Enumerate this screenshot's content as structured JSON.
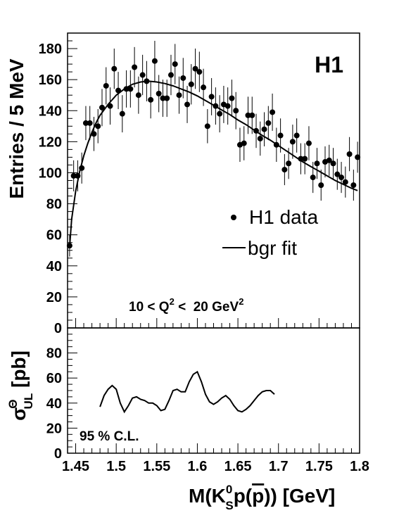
{
  "chart_data": [
    {
      "type": "scatter",
      "panel": "top",
      "title": "",
      "xlabel": "",
      "ylabel": "Entries / 5 MeV",
      "xlim": [
        1.44,
        1.8
      ],
      "ylim": [
        0,
        190
      ],
      "yticks": [
        0,
        20,
        40,
        60,
        80,
        100,
        120,
        140,
        160,
        180
      ],
      "brand_label": "H1",
      "annotation": {
        "text": "10 < Q",
        "sup1": "2",
        "text2": " <  20 GeV",
        "sup2": "2"
      },
      "legend": {
        "position": "right",
        "data_label": "H1 data",
        "fit_label": "bgr fit"
      },
      "series": [
        {
          "name": "H1 data",
          "type": "errorbar",
          "x": [
            1.4425,
            1.4475,
            1.4525,
            1.4575,
            1.4625,
            1.4675,
            1.4725,
            1.4775,
            1.4825,
            1.4875,
            1.4925,
            1.4975,
            1.5025,
            1.5075,
            1.5125,
            1.5175,
            1.5225,
            1.5275,
            1.5325,
            1.5375,
            1.5425,
            1.5475,
            1.5525,
            1.5575,
            1.5625,
            1.5675,
            1.5725,
            1.5775,
            1.5825,
            1.5875,
            1.5925,
            1.5975,
            1.6025,
            1.6075,
            1.6125,
            1.6175,
            1.6225,
            1.6275,
            1.6325,
            1.6375,
            1.6425,
            1.6475,
            1.6525,
            1.6575,
            1.6625,
            1.6675,
            1.6725,
            1.6775,
            1.6825,
            1.6875,
            1.6925,
            1.6975,
            1.7025,
            1.7075,
            1.7125,
            1.7175,
            1.7225,
            1.7275,
            1.7325,
            1.7375,
            1.7425,
            1.7475,
            1.7525,
            1.7575,
            1.7625,
            1.7675,
            1.7725,
            1.7775,
            1.7825,
            1.7875,
            1.7925,
            1.7975
          ],
          "y": [
            53,
            98,
            98,
            103,
            132,
            132,
            125,
            130,
            142,
            156,
            143,
            167,
            153,
            138,
            154,
            154,
            168,
            150,
            163,
            159,
            147,
            172,
            151,
            148,
            148,
            163,
            170,
            150,
            161,
            144,
            157,
            167,
            165,
            155,
            130,
            149,
            143,
            138,
            144,
            143,
            148,
            140,
            118,
            119,
            137,
            137,
            127,
            122,
            128,
            132,
            139,
            118,
            124,
            102,
            106,
            120,
            124,
            109,
            109,
            119,
            97,
            106,
            92,
            107,
            108,
            106,
            99,
            97,
            94,
            112,
            92,
            110
          ],
          "yerr": [
            7,
            10,
            10,
            10,
            11,
            11,
            11,
            11,
            12,
            12,
            12,
            13,
            12,
            12,
            12,
            12,
            13,
            12,
            13,
            13,
            12,
            13,
            12,
            12,
            12,
            13,
            13,
            12,
            13,
            12,
            13,
            13,
            13,
            12,
            11,
            12,
            12,
            12,
            12,
            12,
            12,
            12,
            11,
            11,
            12,
            12,
            11,
            11,
            11,
            11,
            12,
            11,
            11,
            10,
            10,
            11,
            11,
            10,
            10,
            11,
            10,
            10,
            10,
            10,
            10,
            10,
            10,
            10,
            10,
            11,
            10,
            10
          ]
        },
        {
          "name": "bgr fit",
          "type": "line",
          "x": [
            1.4425,
            1.445,
            1.45,
            1.455,
            1.46,
            1.465,
            1.47,
            1.475,
            1.48,
            1.49,
            1.5,
            1.51,
            1.52,
            1.53,
            1.54,
            1.55,
            1.56,
            1.57,
            1.58,
            1.59,
            1.6,
            1.61,
            1.62,
            1.63,
            1.64,
            1.65,
            1.66,
            1.67,
            1.68,
            1.69,
            1.7,
            1.71,
            1.72,
            1.73,
            1.74,
            1.75,
            1.76,
            1.77,
            1.78,
            1.79,
            1.7975
          ],
          "y": [
            52,
            70,
            88,
            101,
            111,
            119,
            126,
            132,
            137,
            144,
            150,
            154,
            157,
            158.5,
            159,
            158.5,
            157.5,
            156,
            154,
            152,
            149.5,
            146.5,
            143.5,
            140.5,
            137.5,
            134,
            131,
            127.5,
            124,
            121,
            117.5,
            114,
            110.5,
            107,
            104,
            101,
            98,
            95,
            92.5,
            90,
            88.5
          ]
        }
      ]
    },
    {
      "type": "line",
      "panel": "bottom",
      "title": "",
      "xlabel": "M(K",
      "xlabel_parts": {
        "a": "M(K",
        "sup": "0",
        "sub": "S",
        "b": "p(",
        "bar": "p",
        "c": ")) [GeV]"
      },
      "ylabel": "σ",
      "ylabel_parts": {
        "sigma": "σ",
        "sup": "Θ",
        "sub": "UL",
        "unit": " [pb]"
      },
      "xlim": [
        1.44,
        1.8
      ],
      "ylim": [
        0,
        100
      ],
      "xticks": [
        1.45,
        1.5,
        1.55,
        1.6,
        1.65,
        1.7,
        1.75,
        1.8
      ],
      "xtick_labels": [
        "1.45",
        "1.5",
        "1.55",
        "1.6",
        "1.65",
        "1.7",
        "1.75",
        "1.8"
      ],
      "yticks": [
        0,
        20,
        40,
        60,
        80
      ],
      "annotation": "95 % C.L.",
      "series": [
        {
          "name": "",
          "x": [
            1.48,
            1.485,
            1.49,
            1.495,
            1.5,
            1.505,
            1.51,
            1.515,
            1.52,
            1.525,
            1.53,
            1.535,
            1.54,
            1.545,
            1.55,
            1.555,
            1.56,
            1.565,
            1.57,
            1.575,
            1.58,
            1.585,
            1.59,
            1.595,
            1.6,
            1.605,
            1.61,
            1.615,
            1.62,
            1.625,
            1.63,
            1.635,
            1.64,
            1.645,
            1.65,
            1.655,
            1.66,
            1.665,
            1.67,
            1.675,
            1.68,
            1.685,
            1.69,
            1.695
          ],
          "y": [
            37,
            46,
            51,
            54,
            51,
            40,
            33,
            38,
            44,
            45,
            43,
            42,
            40,
            40,
            38,
            34,
            35,
            42,
            50,
            51,
            49,
            49,
            57,
            63,
            65,
            57,
            47,
            41,
            39,
            41,
            44,
            46,
            43,
            38,
            34,
            33,
            35,
            38,
            42,
            46,
            49,
            50,
            50,
            47
          ]
        }
      ]
    }
  ]
}
